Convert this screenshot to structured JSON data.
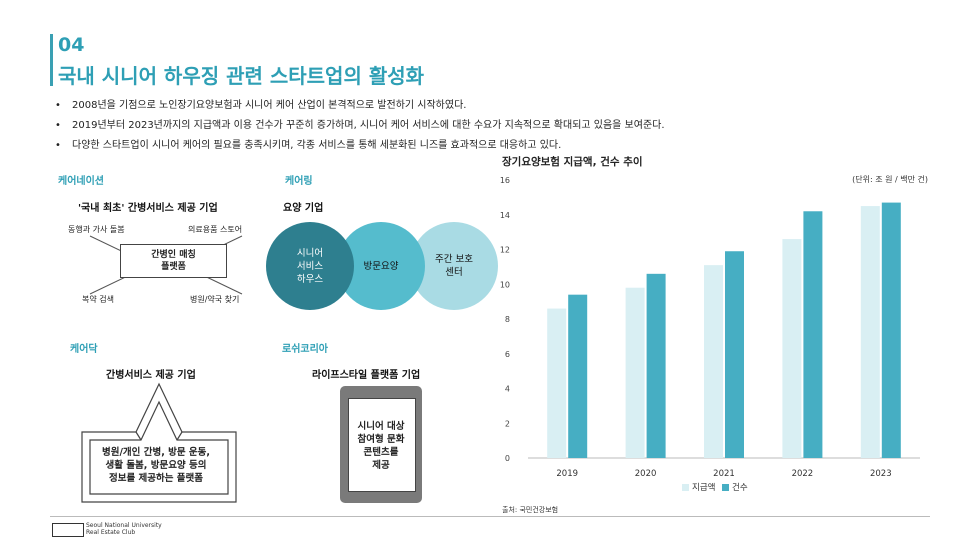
{
  "header": {
    "number": "04",
    "title": "국내 시니어 하우징 관련 스타트업의 활성화"
  },
  "bullets": [
    "2008년을 기점으로 노인장기요양보험과 시니어 케어 산업이 본격적으로 발전하기 시작하였다.",
    "2019년부터 2023년까지의 지급액과 이용 건수가 꾸준히 증가하며, 시니어 케어 서비스에 대한 수요가 지속적으로 확대되고 있음을 보여준다.",
    "다양한 스타트업이 시니어 케어의 필요를 충족시키며, 각종 서비스를 통해 세분화된 니즈를 효과적으로 대응하고 있다."
  ],
  "carenation": {
    "label": "케어네이션",
    "heading": "'국내 최초' 간병서비스 제공 기업",
    "center": [
      "간병인 매칭",
      "플랫폼"
    ],
    "top_left": "동행과 가사 돌봄",
    "top_right": "의료용품 스토어",
    "bottom_left": "복약 검색",
    "bottom_right": "병원/약국 찾기"
  },
  "carering": {
    "label": "케어링",
    "heading": "요양 기업",
    "circle1": [
      "시니어",
      "서비스",
      "하우스"
    ],
    "circle2": [
      "방문요양"
    ],
    "circle3": [
      "주간 보호",
      "센터"
    ]
  },
  "caredoc": {
    "label": "케어닥",
    "heading": "간병서비스 제공 기업",
    "house_lines": [
      "병원/개인 간병, 방문 운동,",
      "생활 돌봄, 방문요양 등의",
      "정보를 제공하는 플랫폼"
    ]
  },
  "rosy": {
    "label": "로쉬코리아",
    "heading": "라이프스타일 플랫폼 기업",
    "phone_lines": [
      "시니어 대상",
      "참여형 문화",
      "콘텐츠를",
      "제공"
    ]
  },
  "chart_data": {
    "type": "bar",
    "title": "장기요양보험 지급액, 건수 추이",
    "unit_note": "(단위: 조 원 / 백만 건)",
    "categories": [
      "2019",
      "2020",
      "2021",
      "2022",
      "2023"
    ],
    "series": [
      {
        "name": "지급액",
        "values": [
          8.6,
          9.8,
          11.1,
          12.6,
          14.5
        ],
        "color": "#d9eff3"
      },
      {
        "name": "건수",
        "values": [
          9.4,
          10.6,
          11.9,
          14.2,
          14.7
        ],
        "color": "#46aec3"
      }
    ],
    "yticks": [
      "0",
      "2",
      "4",
      "6",
      "8",
      "10",
      "12",
      "14",
      "16"
    ],
    "ylim": [
      0,
      16
    ],
    "grid": false,
    "legend": "bottom-center",
    "source": "출처: 국민건강보험"
  },
  "footer": {
    "logo_line1": "Seoul National University",
    "logo_line2": "Real Estate Club"
  },
  "colors": {
    "accent": "#2e9fb5",
    "circle_dark": "#2e7f8f",
    "circle_mid": "#55bccd",
    "circle_light": "#a9dbe4"
  }
}
